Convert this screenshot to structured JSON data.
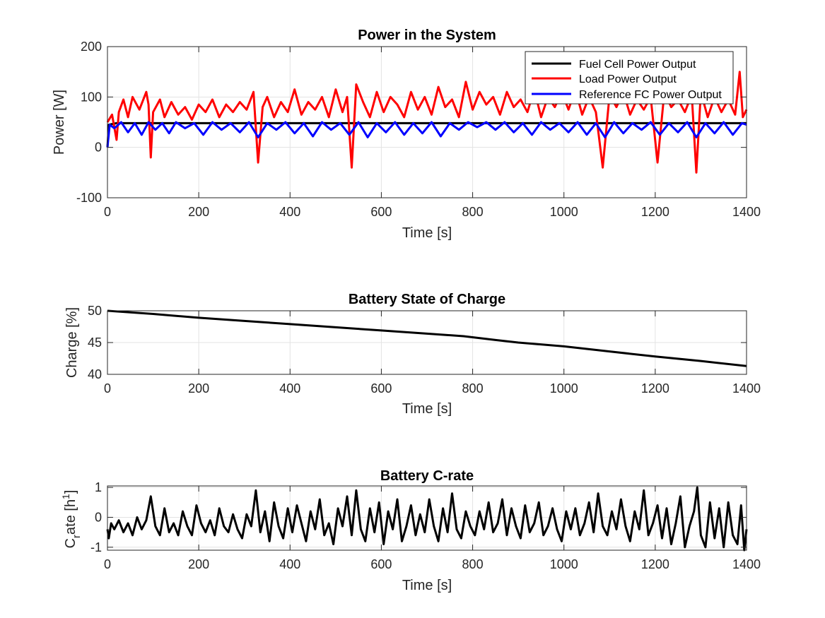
{
  "chart_data": [
    {
      "type": "line",
      "title": "Power in the System",
      "xlabel": "Time [s]",
      "ylabel": "Power [W]",
      "xlim": [
        0,
        1400
      ],
      "ylim": [
        -100,
        200
      ],
      "xticks": [
        0,
        200,
        400,
        600,
        800,
        1000,
        1200,
        1400
      ],
      "yticks": [
        -100,
        0,
        100,
        200
      ],
      "grid": true,
      "legend_position": "top-right",
      "series": [
        {
          "name": "Fuel Cell Power Output",
          "color": "#000000",
          "x": [
            0,
            3,
            20,
            1400
          ],
          "y": [
            0,
            45,
            48,
            48
          ]
        },
        {
          "name": "Load Power Output",
          "color": "#ff0000",
          "x": [
            0,
            10,
            20,
            25,
            35,
            45,
            55,
            70,
            85,
            90,
            95,
            100,
            115,
            125,
            140,
            155,
            170,
            185,
            200,
            215,
            230,
            245,
            260,
            275,
            290,
            305,
            320,
            330,
            340,
            350,
            365,
            380,
            395,
            410,
            425,
            440,
            455,
            470,
            485,
            500,
            515,
            525,
            535,
            545,
            560,
            575,
            590,
            605,
            620,
            635,
            650,
            665,
            680,
            695,
            710,
            725,
            740,
            755,
            770,
            785,
            800,
            815,
            830,
            845,
            860,
            875,
            890,
            905,
            920,
            935,
            950,
            965,
            980,
            995,
            1010,
            1025,
            1040,
            1055,
            1070,
            1085,
            1100,
            1115,
            1130,
            1145,
            1160,
            1175,
            1190,
            1205,
            1220,
            1235,
            1250,
            1265,
            1280,
            1290,
            1300,
            1315,
            1330,
            1345,
            1360,
            1375,
            1385,
            1392,
            1400
          ],
          "y": [
            50,
            65,
            15,
            70,
            95,
            60,
            100,
            75,
            110,
            85,
            -20,
            70,
            95,
            60,
            90,
            65,
            80,
            55,
            85,
            70,
            95,
            60,
            85,
            70,
            90,
            75,
            110,
            -30,
            80,
            100,
            60,
            90,
            70,
            115,
            65,
            90,
            75,
            100,
            60,
            115,
            70,
            100,
            -40,
            125,
            90,
            60,
            110,
            70,
            100,
            85,
            60,
            110,
            75,
            100,
            65,
            120,
            80,
            95,
            60,
            130,
            75,
            110,
            85,
            100,
            65,
            110,
            80,
            95,
            70,
            115,
            60,
            100,
            80,
            110,
            75,
            115,
            65,
            100,
            70,
            -40,
            105,
            80,
            110,
            65,
            95,
            75,
            100,
            -30,
            110,
            80,
            95,
            70,
            105,
            -50,
            110,
            60,
            100,
            70,
            95,
            65,
            150,
            60,
            75
          ]
        },
        {
          "name": "Reference FC Power Output",
          "color": "#0000ff",
          "x": [
            0,
            5,
            15,
            30,
            45,
            60,
            75,
            90,
            105,
            120,
            135,
            150,
            170,
            190,
            210,
            230,
            250,
            270,
            290,
            310,
            330,
            350,
            370,
            390,
            410,
            430,
            450,
            470,
            490,
            510,
            530,
            550,
            570,
            590,
            610,
            630,
            650,
            670,
            690,
            710,
            730,
            750,
            770,
            790,
            810,
            830,
            850,
            870,
            890,
            910,
            930,
            950,
            970,
            990,
            1010,
            1030,
            1050,
            1070,
            1090,
            1110,
            1130,
            1150,
            1170,
            1190,
            1210,
            1230,
            1250,
            1270,
            1290,
            1310,
            1330,
            1350,
            1370,
            1390,
            1400
          ],
          "y": [
            0,
            45,
            38,
            50,
            30,
            48,
            25,
            50,
            35,
            48,
            28,
            50,
            38,
            48,
            25,
            50,
            35,
            48,
            30,
            50,
            20,
            48,
            35,
            50,
            28,
            48,
            22,
            50,
            35,
            48,
            25,
            50,
            20,
            48,
            30,
            50,
            25,
            48,
            28,
            50,
            22,
            48,
            35,
            50,
            40,
            50,
            35,
            50,
            30,
            48,
            25,
            50,
            35,
            48,
            30,
            50,
            25,
            48,
            20,
            50,
            28,
            48,
            35,
            50,
            25,
            48,
            30,
            50,
            20,
            48,
            28,
            50,
            25,
            48,
            45
          ]
        }
      ]
    },
    {
      "type": "line",
      "title": "Battery State of Charge",
      "xlabel": "Time [s]",
      "ylabel": "Charge [%]",
      "xlim": [
        0,
        1400
      ],
      "ylim": [
        40,
        50
      ],
      "xticks": [
        0,
        200,
        400,
        600,
        800,
        1000,
        1200,
        1400
      ],
      "yticks": [
        40,
        45,
        50
      ],
      "grid": true,
      "series": [
        {
          "color": "#000000",
          "x": [
            0,
            100,
            200,
            300,
            400,
            500,
            600,
            700,
            780,
            850,
            900,
            1000,
            1100,
            1200,
            1300,
            1400
          ],
          "y": [
            50.0,
            49.5,
            48.9,
            48.4,
            47.9,
            47.4,
            46.9,
            46.4,
            46.0,
            45.4,
            45.0,
            44.4,
            43.6,
            42.8,
            42.1,
            41.3
          ]
        }
      ]
    },
    {
      "type": "line",
      "title": "Battery C-rate",
      "xlabel": "Time [s]",
      "ylabel_main": "C",
      "ylabel_sub": "r",
      "ylabel_mid": "ate [h",
      "ylabel_sup": "1",
      "ylabel_end": "]",
      "xlim": [
        0,
        1400
      ],
      "ylim": [
        -1.1,
        1.05
      ],
      "xticks": [
        0,
        200,
        400,
        600,
        800,
        1000,
        1200,
        1400
      ],
      "yticks": [
        -1,
        0,
        1
      ],
      "grid": true,
      "series": [
        {
          "color": "#000000",
          "x": [
            0,
            3,
            8,
            15,
            25,
            35,
            45,
            55,
            65,
            75,
            85,
            95,
            105,
            115,
            125,
            135,
            145,
            155,
            165,
            175,
            185,
            195,
            205,
            215,
            225,
            235,
            245,
            255,
            265,
            275,
            285,
            295,
            305,
            315,
            325,
            335,
            345,
            355,
            365,
            375,
            385,
            395,
            405,
            415,
            425,
            435,
            445,
            455,
            465,
            475,
            485,
            495,
            505,
            515,
            525,
            535,
            545,
            555,
            565,
            575,
            585,
            595,
            605,
            615,
            625,
            635,
            645,
            655,
            665,
            675,
            685,
            695,
            705,
            715,
            725,
            735,
            745,
            755,
            765,
            775,
            785,
            795,
            805,
            815,
            825,
            835,
            845,
            855,
            865,
            875,
            885,
            895,
            905,
            915,
            925,
            935,
            945,
            955,
            965,
            975,
            985,
            995,
            1005,
            1015,
            1025,
            1035,
            1045,
            1055,
            1065,
            1075,
            1085,
            1095,
            1105,
            1115,
            1125,
            1135,
            1145,
            1155,
            1165,
            1175,
            1185,
            1195,
            1205,
            1215,
            1225,
            1235,
            1245,
            1255,
            1265,
            1275,
            1285,
            1292,
            1300,
            1310,
            1320,
            1330,
            1340,
            1350,
            1360,
            1370,
            1380,
            1388,
            1395,
            1400
          ],
          "y": [
            -0.4,
            -0.7,
            -0.2,
            -0.4,
            -0.1,
            -0.5,
            -0.2,
            -0.6,
            0.0,
            -0.4,
            -0.1,
            0.7,
            -0.3,
            -0.6,
            0.3,
            -0.5,
            -0.2,
            -0.6,
            0.2,
            -0.3,
            -0.6,
            0.4,
            -0.2,
            -0.5,
            -0.1,
            -0.6,
            0.3,
            -0.3,
            -0.5,
            0.1,
            -0.4,
            -0.7,
            0.1,
            -0.3,
            0.9,
            -0.5,
            0.2,
            -0.8,
            0.5,
            -0.3,
            -0.7,
            0.3,
            -0.5,
            0.4,
            -0.2,
            -0.8,
            0.2,
            -0.4,
            0.6,
            -0.6,
            -0.2,
            -0.9,
            0.3,
            -0.3,
            0.7,
            -0.6,
            0.9,
            -0.4,
            -0.8,
            0.3,
            -0.5,
            0.5,
            -0.9,
            0.2,
            -0.4,
            0.6,
            -0.8,
            -0.3,
            0.4,
            -0.6,
            0.1,
            -0.5,
            0.6,
            -0.3,
            -0.8,
            0.3,
            -0.5,
            0.8,
            -0.4,
            -0.7,
            0.2,
            -0.3,
            -0.6,
            0.2,
            -0.4,
            0.5,
            -0.5,
            -0.2,
            0.6,
            -0.6,
            0.3,
            -0.3,
            -0.7,
            0.4,
            -0.5,
            -0.2,
            0.5,
            -0.6,
            -0.3,
            0.3,
            -0.4,
            -0.8,
            0.2,
            -0.4,
            0.3,
            -0.6,
            -0.2,
            0.5,
            -0.5,
            0.8,
            -0.3,
            -0.6,
            0.2,
            -0.4,
            0.6,
            -0.3,
            -0.8,
            0.2,
            -0.4,
            0.9,
            -0.6,
            -0.2,
            0.4,
            -0.7,
            0.3,
            -0.9,
            -0.2,
            0.7,
            -1.0,
            -0.3,
            0.2,
            1.0,
            -0.6,
            -1.0,
            0.5,
            -0.7,
            0.3,
            -1.0,
            0.5,
            -0.6,
            -0.9,
            0.4,
            -1.1,
            -0.4
          ]
        }
      ]
    }
  ]
}
